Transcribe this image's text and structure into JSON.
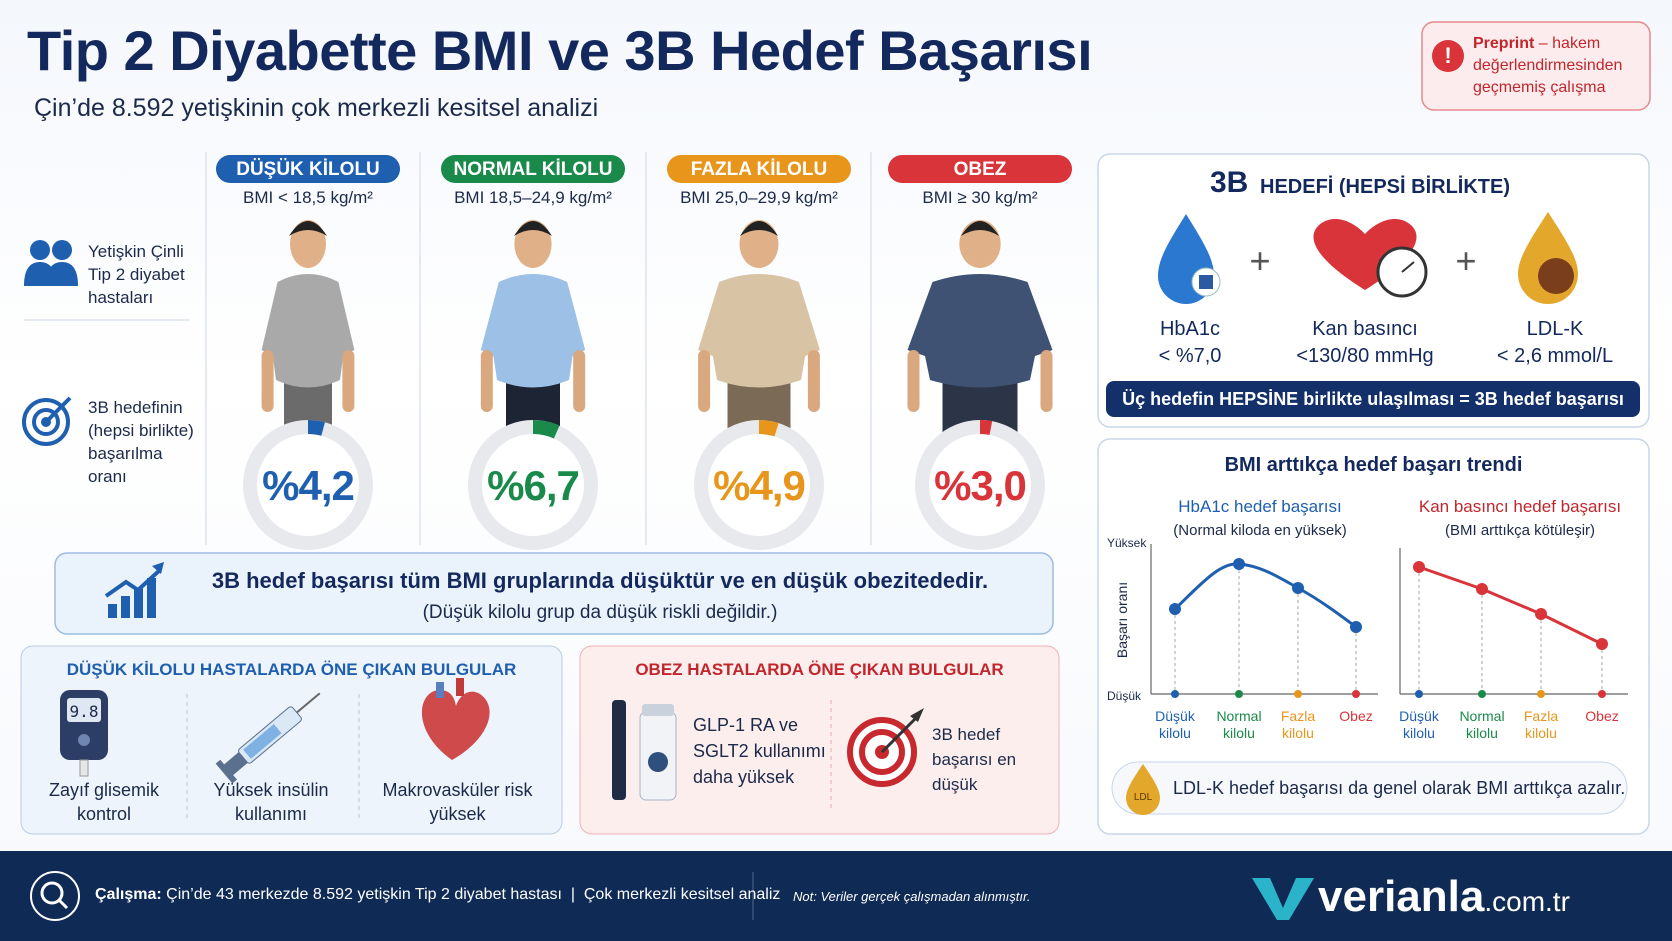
{
  "header": {
    "title": "Tip 2 Diyabette BMI ve 3B Hedef Başarısı",
    "subtitle": "Çin’de 8.592 yetişkinin çok merkezli kesitsel analizi"
  },
  "preprint": {
    "icon": "!",
    "label": "Preprint",
    "text": "– hakem değerlendirmesinden geçmemiş çalışma"
  },
  "legend": {
    "items": [
      "Yetişkin Çinli Tip 2 diyabet hastaları",
      "3B hedefinin (hepsi birlikte) başarılma oranı"
    ]
  },
  "groups": [
    {
      "name": "DÜŞÜK KİLOLU",
      "bmi": "BMI < 18,5 kg/m²",
      "value": 4.2,
      "value_label": "%4,2",
      "color": "#1f5fb0"
    },
    {
      "name": "NORMAL KİLOLU",
      "bmi": "BMI 18,5–24,9 kg/m²",
      "value": 6.7,
      "value_label": "%6,7",
      "color": "#1a8a4a"
    },
    {
      "name": "FAZLA KİLOLU",
      "bmi": "BMI 25,0–29,9 kg/m²",
      "value": 4.9,
      "value_label": "%4,9",
      "color": "#e8951c"
    },
    {
      "name": "OBEZ",
      "bmi": "BMI ≥ 30 kg/m²",
      "value": 3.0,
      "value_label": "%3,0",
      "color": "#d9343a"
    }
  ],
  "summary": {
    "headline": "3B hedef başarısı tüm BMI gruplarında düşüktür ve en düşük obezitededir.",
    "note": "(Düşük kilolu grup da düşük riskli değildir.)"
  },
  "underweight_findings": {
    "title": "DÜŞÜK KİLOLU HASTALARDA ÖNE ÇIKAN BULGULAR",
    "meter": "9.8",
    "items": [
      "Zayıf glisemik kontrol",
      "Yüksek insülin kullanımı",
      "Makrovasküler risk yüksek"
    ]
  },
  "obese_findings": {
    "title": "OBEZ HASTALARDA ÖNE ÇIKAN BULGULAR",
    "items": [
      "GLP-1 RA ve SGLT2 kullanımı daha yüksek",
      "3B hedef başarısı en düşük"
    ]
  },
  "target_panel": {
    "title_main": "3B",
    "title_rest": "HEDEFİ (HEPSİ BİRLİKTE)",
    "plus": "+",
    "items": [
      {
        "name": "HbA1c",
        "target": "< %7,0"
      },
      {
        "name": "Kan basıncı",
        "target": "<130/80 mmHg"
      },
      {
        "name": "LDL-K",
        "target": "< 2,6 mmol/L"
      }
    ],
    "footer": "Üç hedefin HEPSİNE birlikte ulaşılması = 3B hedef başarısı"
  },
  "trend_panel": {
    "title": "BMI arttıkça hedef başarı trendi",
    "y_label": "Başarı oranı",
    "y_high": "Yüksek",
    "y_low": "Düşük",
    "left": {
      "title": "HbA1c hedef başarısı",
      "subtitle": "(Normal kiloda en yüksek)",
      "categories": [
        "Düşük kilolu",
        "Normal kilolu",
        "Fazla kilolu",
        "Obez"
      ]
    },
    "right": {
      "title": "Kan basıncı hedef başarısı",
      "subtitle": "(BMI arttıkça kötüleşir)",
      "categories": [
        "Düşük kilolu",
        "Normal kilolu",
        "Fazla kilolu",
        "Obez"
      ]
    },
    "ldl_icon": "LDL",
    "note": "LDL-K hedef başarısı da genel olarak BMI arttıkça azalır."
  },
  "footer": {
    "study_label": "Çalışma:",
    "study": "Çin’de 43 merkezde 8.592 yetişkin Tip 2 diyabet hastası",
    "separator": "|",
    "design": "Çok merkezli kesitsel analiz",
    "note": "Not: Veriler gerçek çalışmadan alınmıştır.",
    "brand": "verianla",
    "brand_suffix": ".com.tr"
  }
}
